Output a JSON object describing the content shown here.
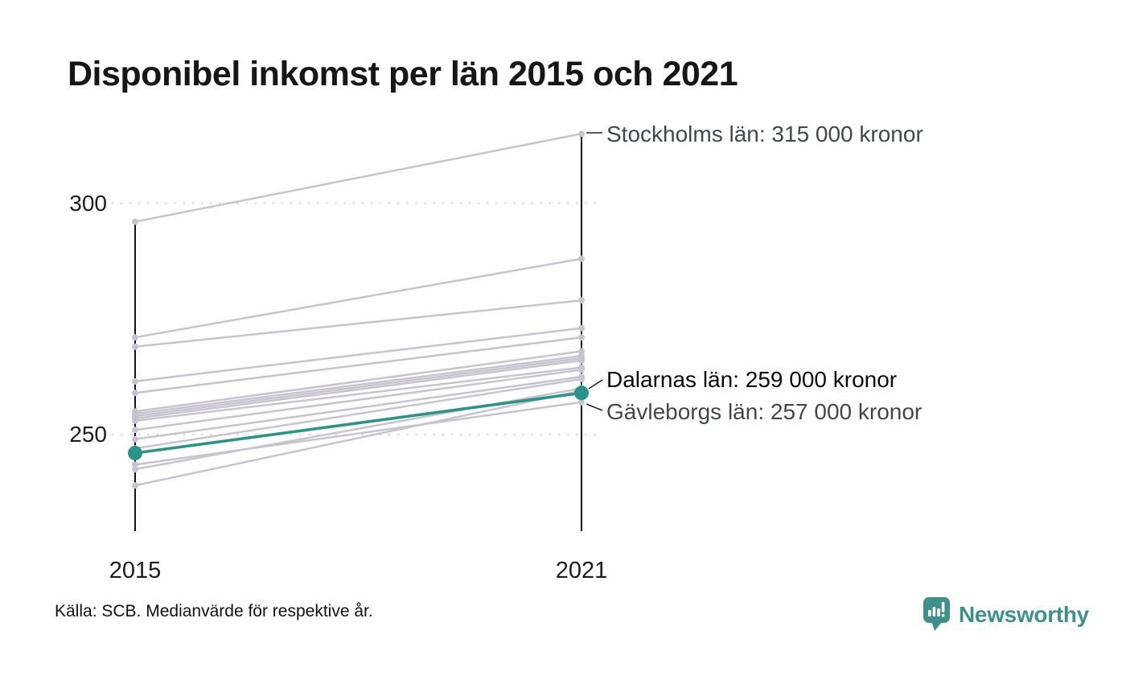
{
  "title": "Disponibel inkomst per län 2015 och 2021",
  "source": "Källa: SCB. Medianvärde för respektive år.",
  "logo": {
    "text": "Newsworthy",
    "icon": "bar-chart-speech-bubble"
  },
  "colors": {
    "highlight": "#2b9488",
    "line": "#c7c4d0",
    "axis": "#131313",
    "grid": "#dcdcdc",
    "leader": "#222222",
    "logo": "#3f908b"
  },
  "chart_data": {
    "type": "line",
    "variant": "slopegraph",
    "title": "Disponibel inkomst per län 2015 och 2021",
    "x": [
      "2015",
      "2021"
    ],
    "unit": "tusen kronor (median)",
    "ylim": [
      230,
      316
    ],
    "grid": "dotted horizontal at 250 and 300",
    "yticks": [
      {
        "label": "300",
        "value": 300
      },
      {
        "label": "250",
        "value": 250
      }
    ],
    "series": [
      {
        "name": "Stockholms län",
        "values": [
          296,
          315
        ],
        "highlight": false
      },
      {
        "name": "",
        "values": [
          271,
          288
        ],
        "highlight": false
      },
      {
        "name": "",
        "values": [
          269,
          279
        ],
        "highlight": false
      },
      {
        "name": "",
        "values": [
          261.5,
          273
        ],
        "highlight": false
      },
      {
        "name": "",
        "values": [
          259,
          271
        ],
        "highlight": false
      },
      {
        "name": "",
        "values": [
          255,
          268
        ],
        "highlight": false
      },
      {
        "name": "",
        "values": [
          254.5,
          267
        ],
        "highlight": false
      },
      {
        "name": "",
        "values": [
          254,
          266.5
        ],
        "highlight": false
      },
      {
        "name": "",
        "values": [
          253.5,
          266
        ],
        "highlight": false
      },
      {
        "name": "",
        "values": [
          253,
          264.5
        ],
        "highlight": false
      },
      {
        "name": "",
        "values": [
          251,
          264
        ],
        "highlight": false
      },
      {
        "name": "",
        "values": [
          249,
          262.5
        ],
        "highlight": false
      },
      {
        "name": "",
        "values": [
          247,
          262
        ],
        "highlight": false
      },
      {
        "name": "",
        "values": [
          242.5,
          260
        ],
        "highlight": false
      },
      {
        "name": "",
        "values": [
          239,
          259.5
        ],
        "highlight": false
      },
      {
        "name": "Gävleborgs län",
        "values": [
          243.5,
          257
        ],
        "highlight": false
      },
      {
        "name": "Dalarnas län",
        "values": [
          246,
          259
        ],
        "highlight": true
      }
    ],
    "annotations": [
      {
        "series": "Stockholms län",
        "text": "Stockholms län: 315 000 kronor",
        "emphasis": "muted"
      },
      {
        "series": "Dalarnas län",
        "text": "Dalarnas län: 259 000 kronor",
        "emphasis": "strong"
      },
      {
        "series": "Gävleborgs län",
        "text": "Gävleborgs län: 257 000 kronor",
        "emphasis": "muted"
      }
    ],
    "legend": "none"
  }
}
